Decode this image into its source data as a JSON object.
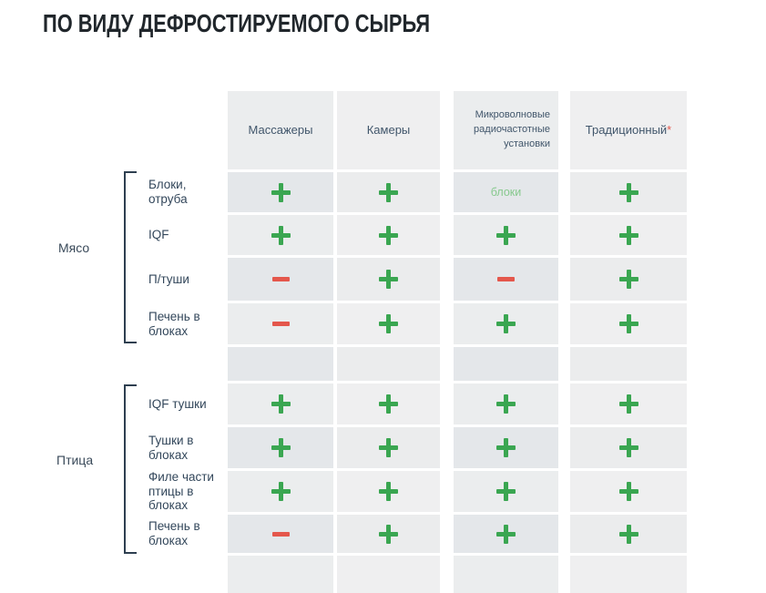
{
  "title": "ПО ВИДУ ДЕФРОСТИРУЕМОГО СЫРЬЯ",
  "colors": {
    "plus": "#3aa651",
    "minus": "#e4574c",
    "muted_green": "#87c98e",
    "bracket": "#2e3f50",
    "header_text": "#41566b",
    "title_text": "#20262b"
  },
  "table": {
    "columns": [
      {
        "label": "Массажеры"
      },
      {
        "label": "Камеры"
      },
      {
        "label": "Микроволновые\nрадиочастотные\nустановки"
      },
      {
        "label": "Традиционный",
        "asterisk": "*"
      }
    ],
    "groups": [
      {
        "label": "Мясо",
        "rows": [
          {
            "label": "Блоки,\nотруба",
            "cells": [
              "+",
              "+",
              "блоки",
              "+"
            ]
          },
          {
            "label": "IQF",
            "cells": [
              "+",
              "+",
              "+",
              "+"
            ]
          },
          {
            "label": "П/туши",
            "cells": [
              "-",
              "+",
              "-",
              "+"
            ]
          },
          {
            "label": "Печень в\nблоках",
            "cells": [
              "-",
              "+",
              "+",
              "+"
            ]
          }
        ]
      },
      {
        "label": "Птица",
        "rows": [
          {
            "label": "IQF тушки",
            "cells": [
              "+",
              "+",
              "+",
              "+"
            ]
          },
          {
            "label": "Тушки в\nблоках",
            "cells": [
              "+",
              "+",
              "+",
              "+"
            ]
          },
          {
            "label": "Филе части\nптицы в\nблоках",
            "cells": [
              "+",
              "+",
              "+",
              "+"
            ]
          },
          {
            "label": "Печень в\nблоках",
            "cells": [
              "-",
              "+",
              "+",
              "+"
            ]
          }
        ]
      }
    ]
  }
}
